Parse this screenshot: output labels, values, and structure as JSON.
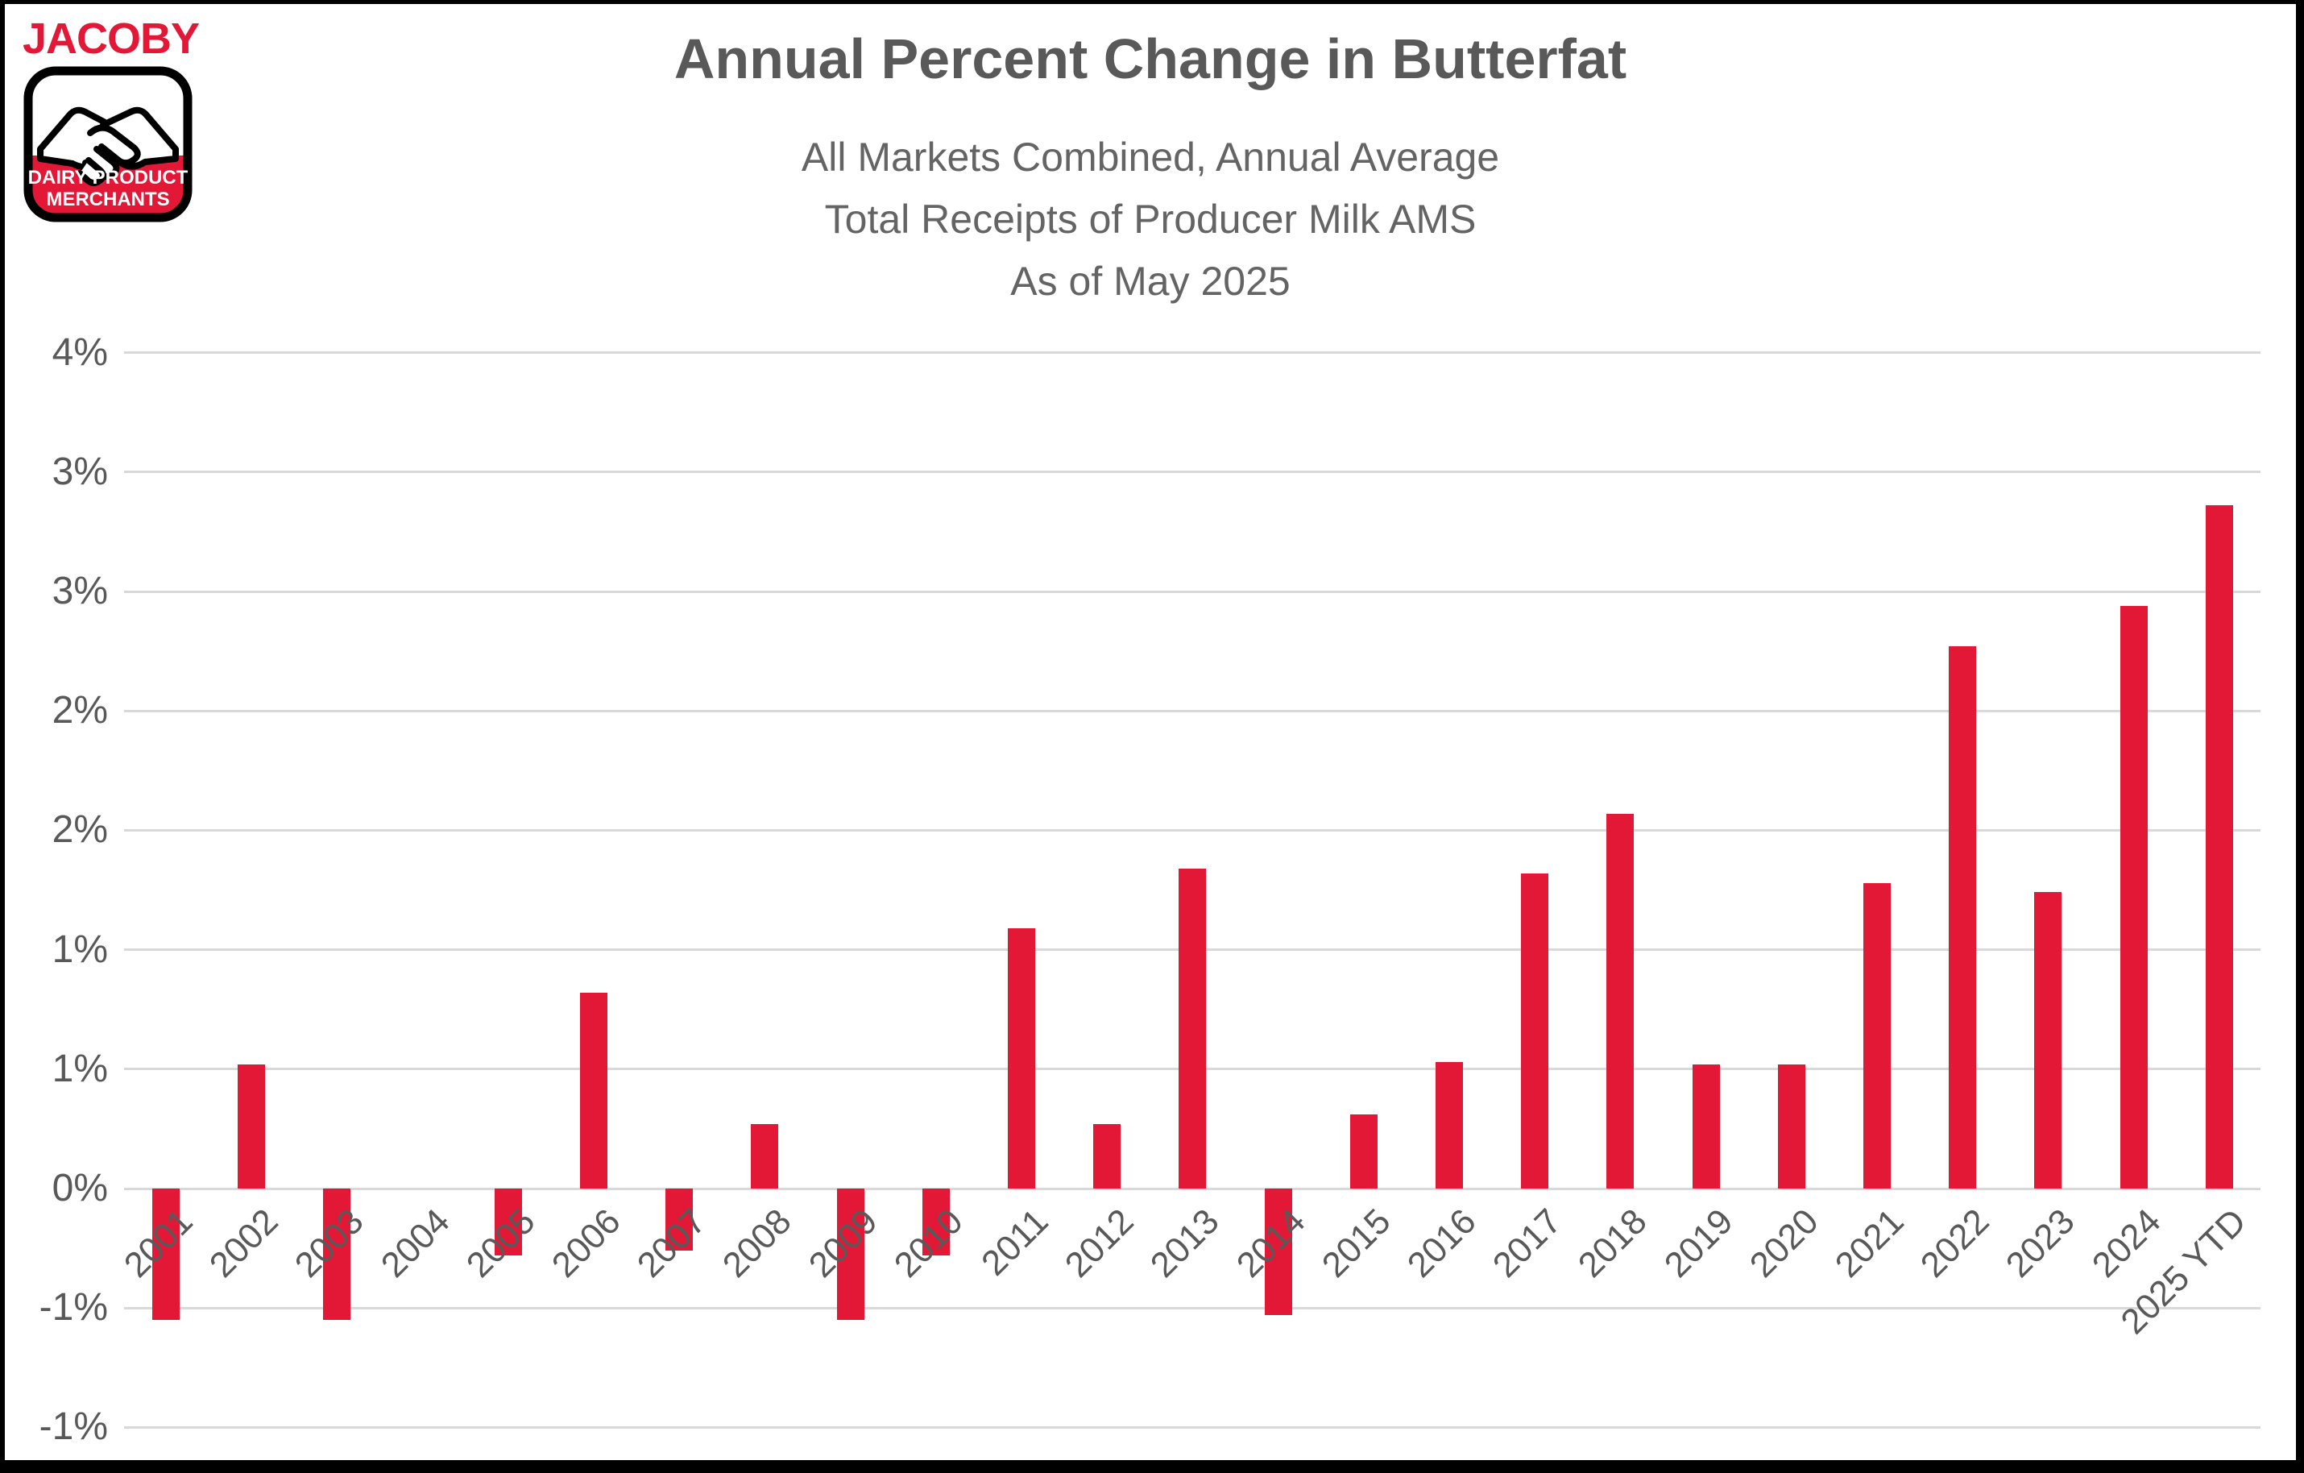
{
  "logo": {
    "brand": "JACOBY",
    "brand_color": "#e31837",
    "badge_line1": "DAIRY PRODUCT",
    "badge_line2": "MERCHANTS",
    "badge_red": "#e31837",
    "badge_outline": "#000000"
  },
  "header": {
    "title": "Annual Percent Change in Butterfat",
    "subtitle_lines": [
      "All Markets Combined, Annual Average",
      "Total Receipts of Producer Milk AMS",
      "As of May 2025"
    ]
  },
  "chart_data": {
    "type": "bar",
    "title": "Annual Percent Change in Butterfat",
    "xlabel": "",
    "ylabel": "",
    "unit": "percent",
    "grid": true,
    "legend": false,
    "bar_color": "#e31837",
    "gridline_color": "#d9d9d9",
    "axis_text_color": "#595959",
    "ylim": [
      -1.0,
      3.5
    ],
    "ytick_step": 0.5,
    "ytick_label_note": "ticks every 0.5% labeled as whole percents (rounded half away from zero)",
    "yticks": [
      {
        "value": 3.5,
        "label": "4%"
      },
      {
        "value": 3.0,
        "label": "3%"
      },
      {
        "value": 2.5,
        "label": "3%"
      },
      {
        "value": 2.0,
        "label": "2%"
      },
      {
        "value": 1.5,
        "label": "2%"
      },
      {
        "value": 1.0,
        "label": "1%"
      },
      {
        "value": 0.5,
        "label": "1%"
      },
      {
        "value": 0.0,
        "label": "0%"
      },
      {
        "value": -0.5,
        "label": "-1%"
      },
      {
        "value": -1.0,
        "label": "-1%"
      }
    ],
    "categories": [
      "2001",
      "2002",
      "2003",
      "2004",
      "2005",
      "2006",
      "2007",
      "2008",
      "2009",
      "2010",
      "2011",
      "2012",
      "2013",
      "2014",
      "2015",
      "2016",
      "2017",
      "2018",
      "2019",
      "2020",
      "2021",
      "2022",
      "2023",
      "2024",
      "2025 YTD"
    ],
    "values": [
      -0.55,
      0.52,
      -0.55,
      0.0,
      -0.28,
      0.82,
      -0.26,
      0.27,
      -0.55,
      -0.28,
      1.09,
      0.27,
      1.34,
      -0.53,
      0.31,
      0.53,
      1.32,
      1.57,
      0.52,
      0.52,
      1.28,
      2.27,
      1.24,
      2.44,
      2.86
    ]
  }
}
